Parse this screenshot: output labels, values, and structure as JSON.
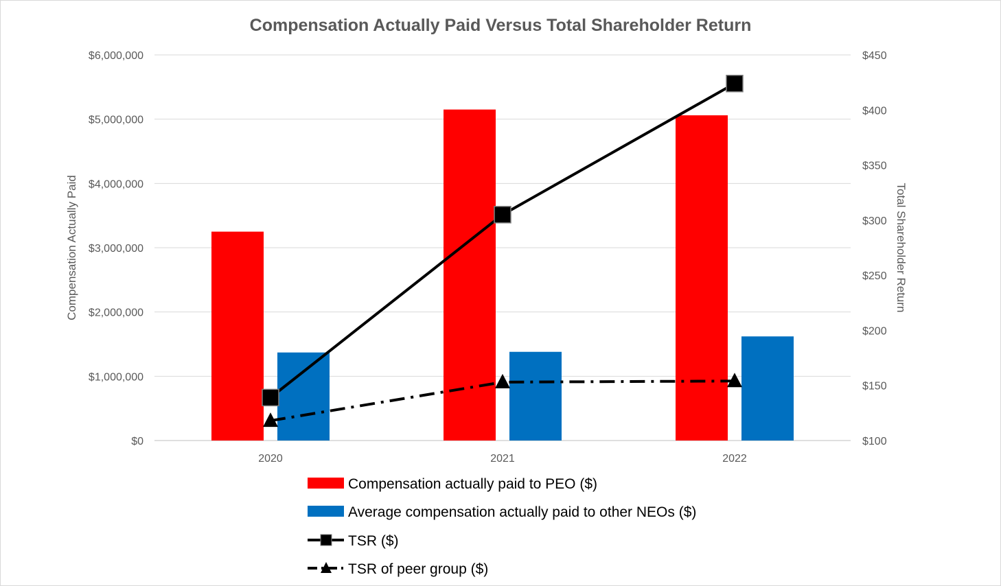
{
  "chart_data": {
    "type": "bar",
    "title": "Compensation Actually Paid Versus Total Shareholder Return",
    "categories": [
      "2020",
      "2021",
      "2022"
    ],
    "y_left": {
      "label": "Compensation Actually Paid",
      "lim": [
        0,
        6000000
      ],
      "ticks": [
        0,
        1000000,
        2000000,
        3000000,
        4000000,
        5000000,
        6000000
      ],
      "tick_labels": [
        "$0",
        "$1,000,000",
        "$2,000,000",
        "$3,000,000",
        "$4,000,000",
        "$5,000,000",
        "$6,000,000"
      ]
    },
    "y_right": {
      "label": "Total Shareholder Return",
      "lim": [
        100,
        450
      ],
      "ticks": [
        100,
        150,
        200,
        250,
        300,
        350,
        400,
        450
      ],
      "tick_labels": [
        "$100",
        "$150",
        "$200",
        "$250",
        "$300",
        "$350",
        "$400",
        "$450"
      ]
    },
    "grid": "horizontal",
    "legend_position": "bottom",
    "series": [
      {
        "name": "Compensation actually paid to PEO ($)",
        "type": "bar",
        "axis": "left",
        "color": "#ff0000",
        "values": [
          3250000,
          5150000,
          5060000
        ]
      },
      {
        "name": "Average compensation actually paid to other NEOs ($)",
        "type": "bar",
        "axis": "left",
        "color": "#0070c0",
        "values": [
          1370000,
          1380000,
          1620000
        ]
      },
      {
        "name": "TSR ($)",
        "type": "line",
        "axis": "right",
        "color": "#000000",
        "line_style": "solid",
        "marker": "square",
        "values": [
          139,
          305,
          424
        ]
      },
      {
        "name": "TSR of peer group ($)",
        "type": "line",
        "axis": "right",
        "color": "#000000",
        "line_style": "dash-dot",
        "marker": "triangle",
        "values": [
          118,
          153,
          154
        ]
      }
    ]
  }
}
